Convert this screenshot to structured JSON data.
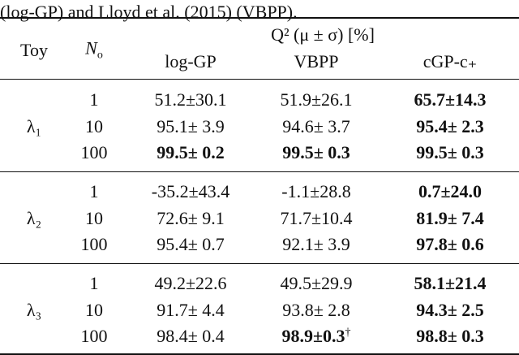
{
  "caption": "(log-GP) and Lloyd et al. (2015) (VBPP).",
  "header": {
    "toy": "Toy",
    "n_main": "N",
    "n_sub": "o",
    "metric": "Q² (μ ± σ) [%]",
    "columns": [
      "log-GP",
      "VBPP",
      "cGP-c₊"
    ]
  },
  "groups": [
    {
      "label": "λ₁",
      "rows": [
        {
          "n": "1",
          "cells": [
            {
              "text": "51.2±30.1",
              "bold": false
            },
            {
              "text": "51.9±26.1",
              "bold": false
            },
            {
              "text": "65.7±14.3",
              "bold": true
            }
          ]
        },
        {
          "n": "10",
          "cells": [
            {
              "text": "95.1± 3.9",
              "bold": false
            },
            {
              "text": "94.6± 3.7",
              "bold": false
            },
            {
              "text": "95.4± 2.3",
              "bold": true
            }
          ]
        },
        {
          "n": "100",
          "cells": [
            {
              "text": "99.5± 0.2",
              "bold": true
            },
            {
              "text": "99.5± 0.3",
              "bold": true
            },
            {
              "text": "99.5± 0.3",
              "bold": true
            }
          ]
        }
      ]
    },
    {
      "label": "λ₂",
      "rows": [
        {
          "n": "1",
          "cells": [
            {
              "text": "-35.2±43.4",
              "bold": false
            },
            {
              "text": "-1.1±28.8",
              "bold": false
            },
            {
              "text": "0.7±24.0",
              "bold": true
            }
          ]
        },
        {
          "n": "10",
          "cells": [
            {
              "text": "72.6± 9.1",
              "bold": false
            },
            {
              "text": "71.7±10.4",
              "bold": false
            },
            {
              "text": "81.9± 7.4",
              "bold": true
            }
          ]
        },
        {
          "n": "100",
          "cells": [
            {
              "text": "95.4± 0.7",
              "bold": false
            },
            {
              "text": "92.1± 3.9",
              "bold": false
            },
            {
              "text": "97.8± 0.6",
              "bold": true
            }
          ]
        }
      ]
    },
    {
      "label": "λ₃",
      "rows": [
        {
          "n": "1",
          "cells": [
            {
              "text": "49.2±22.6",
              "bold": false
            },
            {
              "text": "49.5±29.9",
              "bold": false
            },
            {
              "text": "58.1±21.4",
              "bold": true
            }
          ]
        },
        {
          "n": "10",
          "cells": [
            {
              "text": "91.7± 4.4",
              "bold": false
            },
            {
              "text": "93.8± 2.8",
              "bold": false
            },
            {
              "text": "94.3± 2.5",
              "bold": true
            }
          ]
        },
        {
          "n": "100",
          "cells": [
            {
              "text": "98.4± 0.4",
              "bold": false
            },
            {
              "text": "98.9±0.3",
              "bold": true,
              "sup": "†"
            },
            {
              "text": "98.8± 0.3",
              "bold": true
            }
          ]
        }
      ]
    }
  ]
}
